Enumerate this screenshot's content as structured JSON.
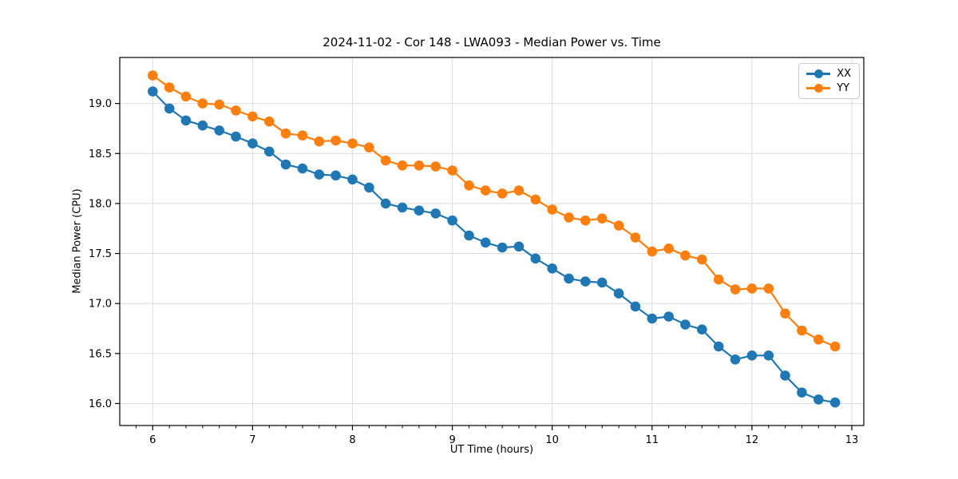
{
  "window": {
    "kind": "matplotlib-style static chart image",
    "background": "#ffffff"
  },
  "chart_data": {
    "type": "line",
    "title": "2024-11-02 - Cor 148 - LWA093 - Median Power vs. Time",
    "xlabel": "UT Time (hours)",
    "ylabel": "Median Power (CPU)",
    "xlim": [
      5.67,
      13.12
    ],
    "ylim": [
      15.78,
      19.46
    ],
    "x_ticks": [
      6,
      7,
      8,
      9,
      10,
      11,
      12,
      13
    ],
    "x_tick_labels": [
      "6",
      "7",
      "8",
      "9",
      "10",
      "11",
      "12",
      "13"
    ],
    "x_minor_tick_step": 0.16667,
    "y_ticks": [
      16.0,
      16.5,
      17.0,
      17.5,
      18.0,
      18.5,
      19.0
    ],
    "y_tick_labels": [
      "16.0",
      "16.5",
      "17.0",
      "17.5",
      "18.0",
      "18.5",
      "19.0"
    ],
    "grid": true,
    "grid_color": "#dcdcdc",
    "legend_position": "upper right",
    "marker": "circle",
    "x": [
      6.0,
      6.167,
      6.333,
      6.5,
      6.667,
      6.833,
      7.0,
      7.167,
      7.333,
      7.5,
      7.667,
      7.833,
      8.0,
      8.167,
      8.333,
      8.5,
      8.667,
      8.833,
      9.0,
      9.167,
      9.333,
      9.5,
      9.667,
      9.833,
      10.0,
      10.167,
      10.333,
      10.5,
      10.667,
      10.833,
      11.0,
      11.167,
      11.333,
      11.5,
      11.667,
      11.833,
      12.0,
      12.167,
      12.333,
      12.5,
      12.667,
      12.833
    ],
    "series": [
      {
        "name": "XX",
        "color": "#1f77b4",
        "values": [
          19.12,
          18.95,
          18.83,
          18.78,
          18.73,
          18.67,
          18.6,
          18.52,
          18.39,
          18.35,
          18.29,
          18.28,
          18.24,
          18.16,
          18.0,
          17.96,
          17.93,
          17.9,
          17.83,
          17.68,
          17.61,
          17.56,
          17.57,
          17.45,
          17.35,
          17.25,
          17.22,
          17.21,
          17.1,
          16.97,
          16.85,
          16.87,
          16.79,
          16.74,
          16.57,
          16.44,
          16.48,
          16.48,
          16.28,
          16.11,
          16.04,
          16.01
        ]
      },
      {
        "name": "YY",
        "color": "#ff7f0e",
        "values": [
          19.28,
          19.16,
          19.07,
          19.0,
          18.99,
          18.93,
          18.87,
          18.82,
          18.7,
          18.68,
          18.62,
          18.63,
          18.6,
          18.56,
          18.43,
          18.38,
          18.38,
          18.37,
          18.33,
          18.18,
          18.13,
          18.1,
          18.13,
          18.04,
          17.94,
          17.86,
          17.83,
          17.85,
          17.78,
          17.66,
          17.52,
          17.55,
          17.48,
          17.44,
          17.24,
          17.14,
          17.15,
          17.15,
          16.9,
          16.73,
          16.64,
          16.57
        ]
      }
    ]
  }
}
